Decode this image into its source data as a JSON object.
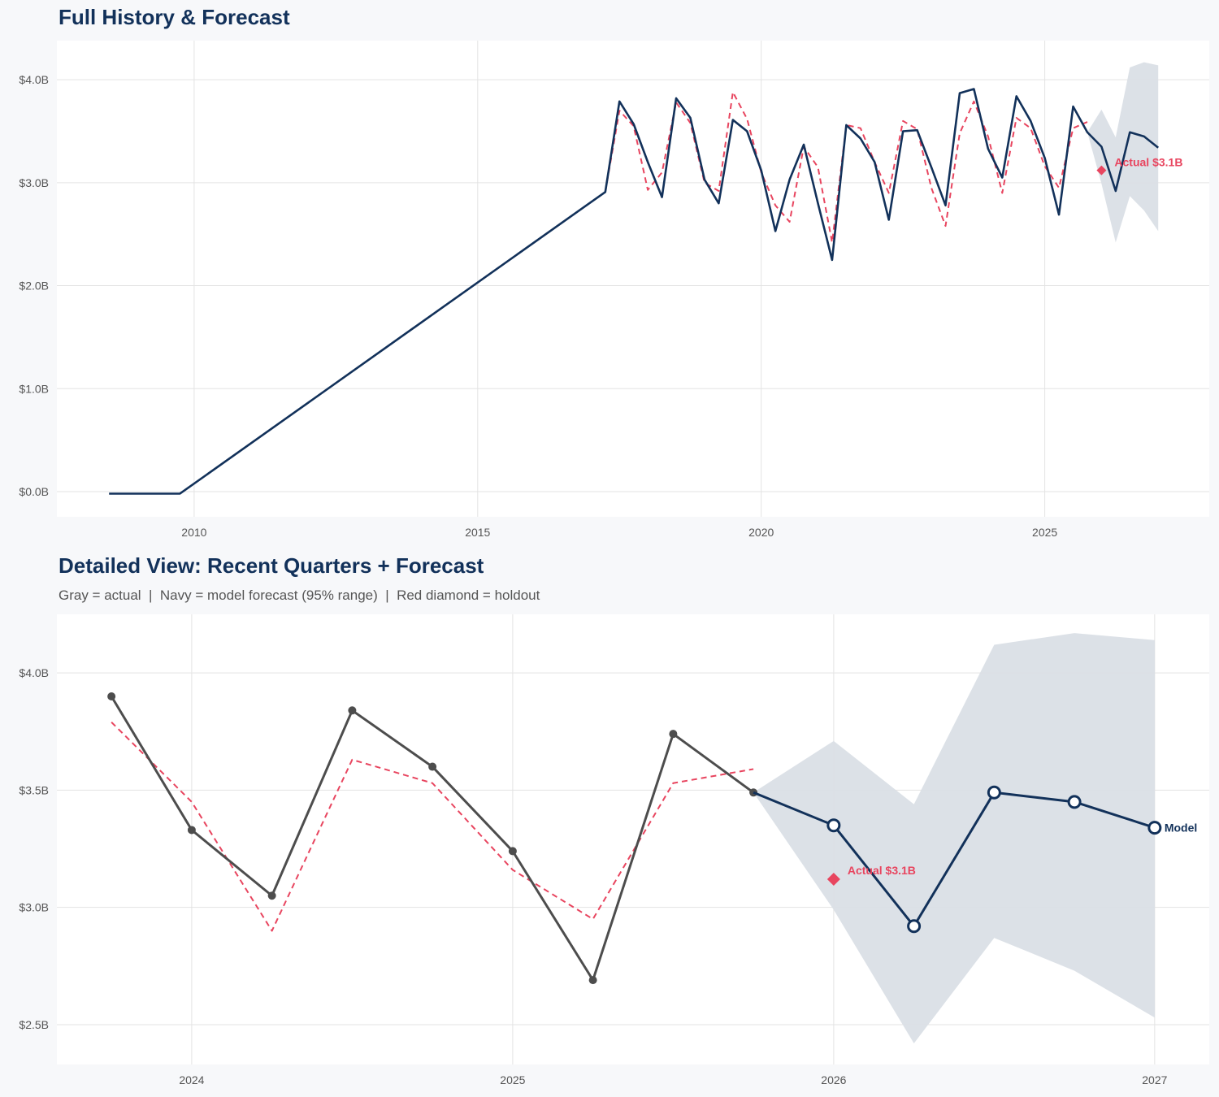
{
  "colors": {
    "navy": "#12315a",
    "gray": "#4d4d4d",
    "red": "#e8455f",
    "band": "#dadfe6",
    "grid": "#e3e3e3"
  },
  "chart_data": [
    {
      "type": "line",
      "title": "Full History & Forecast",
      "xlim": [
        2007.58,
        2027.9
      ],
      "ylim": [
        -0.245,
        4.38
      ],
      "x_ticks": [
        2010,
        2015,
        2020,
        2025
      ],
      "x_tick_labels": [
        "2010",
        "2015",
        "2020",
        "2025"
      ],
      "y_ticks": [
        0,
        1,
        2,
        3,
        4
      ],
      "y_tick_labels": [
        "$0.0B",
        "$1.0B",
        "$2.0B",
        "$3.0B",
        "$4.0B"
      ],
      "grid": true,
      "series": [
        {
          "role": "actual_and_forecast",
          "color": "#12315a",
          "x": [
            2008.5,
            2009.75,
            2017.25,
            2017.5,
            2017.75,
            2018,
            2018.25,
            2018.5,
            2018.75,
            2019,
            2019.25,
            2019.5,
            2019.75,
            2020,
            2020.25,
            2020.5,
            2020.75,
            2021,
            2021.25,
            2021.5,
            2021.75,
            2022,
            2022.25,
            2022.5,
            2022.75,
            2023,
            2023.25,
            2023.5,
            2023.75,
            2024,
            2024.25,
            2024.5,
            2024.75,
            2025,
            2025.25,
            2025.5,
            2025.75,
            2026,
            2026.25,
            2026.5,
            2026.75,
            2027
          ],
          "y": [
            -0.02,
            -0.02,
            2.91,
            3.79,
            3.57,
            3.2,
            2.86,
            3.82,
            3.63,
            3.03,
            2.8,
            3.61,
            3.5,
            3.12,
            2.53,
            3.03,
            3.37,
            2.8,
            2.25,
            3.56,
            3.43,
            3.2,
            2.64,
            3.5,
            3.51,
            3.15,
            2.78,
            3.87,
            3.91,
            3.33,
            3.05,
            3.84,
            3.6,
            3.24,
            2.69,
            3.74,
            3.49,
            3.35,
            2.92,
            3.49,
            3.45,
            3.34
          ]
        },
        {
          "role": "fitted",
          "color": "#e8455f",
          "dashed": true,
          "x": [
            2017.25,
            2017.5,
            2017.75,
            2018,
            2018.25,
            2018.5,
            2018.75,
            2019,
            2019.25,
            2019.5,
            2019.75,
            2020,
            2020.25,
            2020.5,
            2020.75,
            2021,
            2021.25,
            2021.5,
            2021.75,
            2022,
            2022.25,
            2022.5,
            2022.75,
            2023,
            2023.25,
            2023.5,
            2023.75,
            2024,
            2024.25,
            2024.5,
            2024.75,
            2025,
            2025.25,
            2025.5,
            2025.75
          ],
          "y": [
            2.91,
            3.7,
            3.55,
            2.93,
            3.1,
            3.78,
            3.58,
            3.0,
            2.92,
            3.88,
            3.62,
            3.1,
            2.78,
            2.62,
            3.35,
            3.15,
            2.42,
            3.56,
            3.53,
            3.2,
            2.9,
            3.6,
            3.52,
            2.95,
            2.58,
            3.48,
            3.79,
            3.45,
            2.9,
            3.63,
            3.53,
            3.16,
            2.95,
            3.53,
            3.59
          ]
        }
      ],
      "band": {
        "x": [
          2025.75,
          2026,
          2026.25,
          2026.5,
          2026.75,
          2027
        ],
        "lower": [
          3.49,
          2.99,
          2.42,
          2.87,
          2.73,
          2.53
        ],
        "upper": [
          3.49,
          3.71,
          3.44,
          4.12,
          4.17,
          4.14
        ]
      },
      "holdout": {
        "x": 2026,
        "y": 3.12,
        "label": "Actual $3.1B"
      }
    },
    {
      "type": "line",
      "title": "Detailed View: Recent Quarters + Forecast",
      "subtitle": "Gray = actual  |  Navy = model forecast (95% range)  |  Red diamond = holdout",
      "xlim": [
        2023.58,
        2027.17
      ],
      "ylim": [
        2.33,
        4.25
      ],
      "x_ticks": [
        2024,
        2025,
        2026,
        2027
      ],
      "x_tick_labels": [
        "2024",
        "2025",
        "2026",
        "2027"
      ],
      "y_ticks": [
        2.5,
        3.0,
        3.5,
        4.0
      ],
      "y_tick_labels": [
        "$2.5B",
        "$3.0B",
        "$3.5B",
        "$4.0B"
      ],
      "grid": true,
      "series": [
        {
          "role": "actual",
          "color": "#4d4d4d",
          "markers": "filled",
          "x": [
            2023.75,
            2024,
            2024.25,
            2024.5,
            2024.75,
            2025,
            2025.25,
            2025.5,
            2025.75
          ],
          "y": [
            3.9,
            3.33,
            3.05,
            3.84,
            3.6,
            3.24,
            2.69,
            3.74,
            3.49
          ]
        },
        {
          "role": "fitted",
          "color": "#e8455f",
          "dashed": true,
          "x": [
            2023.75,
            2024,
            2024.25,
            2024.5,
            2024.75,
            2025,
            2025.25,
            2025.5,
            2025.75
          ],
          "y": [
            3.79,
            3.45,
            2.9,
            3.63,
            3.53,
            3.16,
            2.95,
            3.53,
            3.59
          ]
        },
        {
          "role": "forecast",
          "color": "#12315a",
          "markers": "hollow",
          "name": "Model",
          "x": [
            2025.75,
            2026,
            2026.25,
            2026.5,
            2026.75,
            2027
          ],
          "y": [
            3.49,
            3.35,
            2.92,
            3.49,
            3.45,
            3.34
          ]
        }
      ],
      "band": {
        "x": [
          2025.75,
          2026,
          2026.25,
          2026.5,
          2026.75,
          2027
        ],
        "lower": [
          3.49,
          2.99,
          2.42,
          2.87,
          2.73,
          2.53
        ],
        "upper": [
          3.49,
          3.71,
          3.44,
          4.12,
          4.17,
          4.14
        ]
      },
      "holdout": {
        "x": 2026,
        "y": 3.12,
        "label": "Actual $3.1B"
      }
    }
  ]
}
